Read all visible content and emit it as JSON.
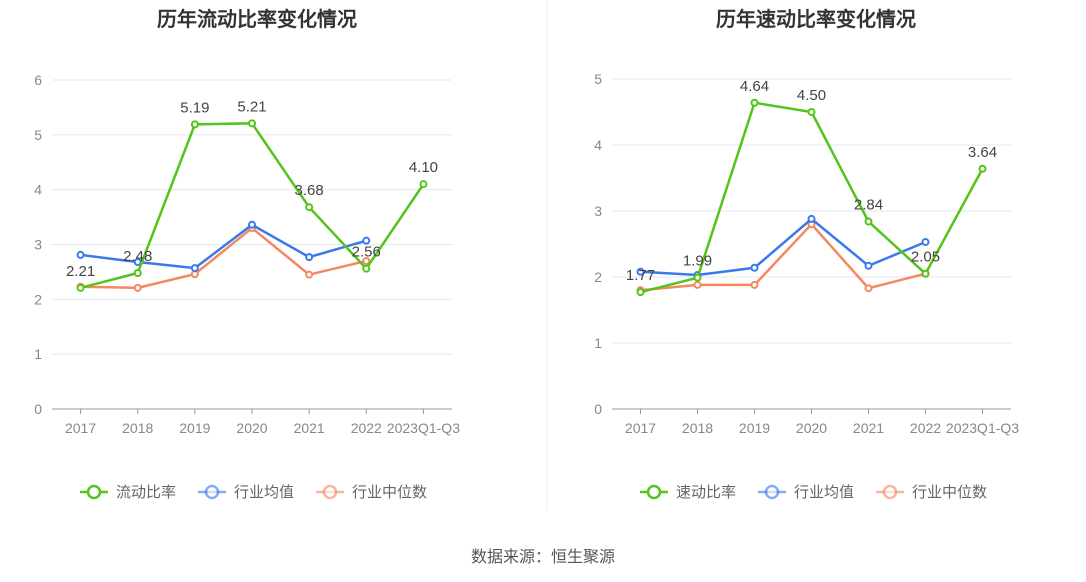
{
  "source": "数据来源：恒生聚源",
  "colors": {
    "main": "#52c41a",
    "avg": "#3a78ee",
    "median": "#f5875f",
    "grid": "#e3e7f0",
    "axis": "#999"
  },
  "chart_data": [
    {
      "type": "line",
      "title": "历年流动比率变化情况",
      "categories": [
        "2017",
        "2018",
        "2019",
        "2020",
        "2021",
        "2022",
        "2023Q1-Q3"
      ],
      "ylim": [
        0,
        6
      ],
      "yticks": [
        0,
        1,
        2,
        3,
        4,
        5,
        6
      ],
      "legend": "bottom",
      "series": [
        {
          "name": "流动比率",
          "key": "main",
          "values": [
            2.21,
            2.48,
            5.19,
            5.21,
            3.68,
            2.56,
            4.1
          ],
          "labels": [
            "2.21",
            "2.48",
            "5.19",
            "5.21",
            "3.68",
            "2.56",
            "4.10"
          ]
        },
        {
          "name": "行业均值",
          "key": "avg",
          "values": [
            2.81,
            2.68,
            2.57,
            3.36,
            2.77,
            3.07,
            null
          ]
        },
        {
          "name": "行业中位数",
          "key": "median",
          "values": [
            2.23,
            2.21,
            2.46,
            3.3,
            2.45,
            2.7,
            null
          ]
        }
      ]
    },
    {
      "type": "line",
      "title": "历年速动比率变化情况",
      "categories": [
        "2017",
        "2018",
        "2019",
        "2020",
        "2021",
        "2022",
        "2023Q1-Q3"
      ],
      "ylim": [
        0,
        5
      ],
      "yticks": [
        0,
        1,
        2,
        3,
        4,
        5
      ],
      "legend": "bottom",
      "series": [
        {
          "name": "速动比率",
          "key": "main",
          "values": [
            1.77,
            1.99,
            4.64,
            4.5,
            2.84,
            2.05,
            3.64
          ],
          "labels": [
            "1.77",
            "1.99",
            "4.64",
            "4.50",
            "2.84",
            "2.05",
            "3.64"
          ]
        },
        {
          "name": "行业均值",
          "key": "avg",
          "values": [
            2.08,
            2.03,
            2.14,
            2.88,
            2.17,
            2.53,
            null
          ]
        },
        {
          "name": "行业中位数",
          "key": "median",
          "values": [
            1.8,
            1.88,
            1.88,
            2.8,
            1.83,
            2.05,
            null
          ]
        }
      ]
    }
  ]
}
